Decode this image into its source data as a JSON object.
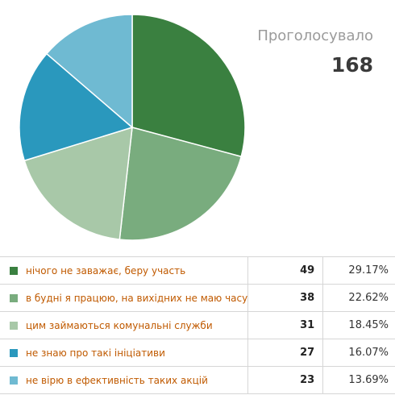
{
  "summary": {
    "total_label": "Проголосувало",
    "total_value": "168"
  },
  "chart_data": {
    "type": "pie",
    "total": 168,
    "start": "12 o'clock",
    "direction": "clockwise",
    "slices": [
      {
        "label": "нічого не заважає, беру участь",
        "value": 49,
        "percent": "29.17%",
        "color": "#3a8040"
      },
      {
        "label": "в будні я працюю, на вихідних не маю часу",
        "value": 38,
        "percent": "22.62%",
        "color": "#79ac7e"
      },
      {
        "label": "цим займаються комунальні служби",
        "value": 31,
        "percent": "18.45%",
        "color": "#a8c8a8"
      },
      {
        "label": "не знаю про такі ініціативи",
        "value": 27,
        "percent": "16.07%",
        "color": "#2a98bd"
      },
      {
        "label": "не вірю в ефективність таких акцій",
        "value": 23,
        "percent": "13.69%",
        "color": "#6fbad2"
      }
    ]
  }
}
